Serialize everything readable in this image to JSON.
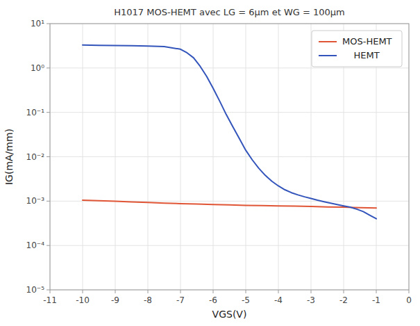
{
  "chart_data": {
    "type": "line",
    "title": "H1017 MOS-HEMT avec LG = 6μm et WG = 100μm",
    "xlabel": "VGS(V)",
    "ylabel": "IG(mA/mm)",
    "log": "y",
    "grid": true,
    "legend": "upper right",
    "xlim": [
      -11,
      0
    ],
    "ylim": [
      1e-05,
      10.0
    ],
    "xticks": [
      -11,
      -10,
      -9,
      -8,
      -7,
      -6,
      -5,
      -4,
      -3,
      -2,
      -1,
      0
    ],
    "yticks": [
      {
        "value": 1e-05,
        "label": "10⁻⁵"
      },
      {
        "value": 0.0001,
        "label": "10⁻⁴"
      },
      {
        "value": 0.001,
        "label": "10⁻³"
      },
      {
        "value": 0.01,
        "label": "10⁻²"
      },
      {
        "value": 0.1,
        "label": "10⁻¹"
      },
      {
        "value": 1,
        "label": "10⁰"
      },
      {
        "value": 10.0,
        "label": "10¹"
      }
    ],
    "series": [
      {
        "name": "MOS-HEMT",
        "color": "#e05535",
        "x": [
          -10,
          -9.5,
          -9,
          -8.5,
          -8,
          -7.5,
          -7,
          -6.5,
          -6,
          -5.5,
          -5,
          -4.5,
          -4,
          -3.5,
          -3,
          -2.5,
          -2,
          -1.5,
          -1
        ],
        "values": [
          0.00105,
          0.00102,
          0.00099,
          0.00096,
          0.00093,
          0.0009,
          0.00088,
          0.00086,
          0.00084,
          0.00082,
          0.0008,
          0.00079,
          0.00078,
          0.00077,
          0.00076,
          0.00074,
          0.00073,
          0.00071,
          0.0007
        ]
      },
      {
        "name": "    HEMT",
        "color": "#3355bb",
        "x": [
          -10,
          -9.5,
          -9,
          -8.5,
          -8,
          -7.5,
          -7,
          -6.8,
          -6.6,
          -6.4,
          -6.2,
          -6.0,
          -5.8,
          -5.6,
          -5.4,
          -5.2,
          -5.0,
          -4.8,
          -4.6,
          -4.4,
          -4.2,
          -4.0,
          -3.8,
          -3.6,
          -3.4,
          -3.2,
          -3.0,
          -2.8,
          -2.6,
          -2.4,
          -2.2,
          -2.0,
          -1.8,
          -1.6,
          -1.4,
          -1.2,
          -1.0
        ],
        "values": [
          3.3,
          3.25,
          3.22,
          3.18,
          3.12,
          3.05,
          2.65,
          2.2,
          1.7,
          1.1,
          0.65,
          0.35,
          0.18,
          0.09,
          0.048,
          0.026,
          0.014,
          0.0085,
          0.0055,
          0.0038,
          0.0028,
          0.0022,
          0.0018,
          0.00155,
          0.00138,
          0.00125,
          0.00115,
          0.00105,
          0.00097,
          0.0009,
          0.00084,
          0.00078,
          0.00073,
          0.00066,
          0.00058,
          0.00048,
          0.0004
        ]
      }
    ]
  }
}
